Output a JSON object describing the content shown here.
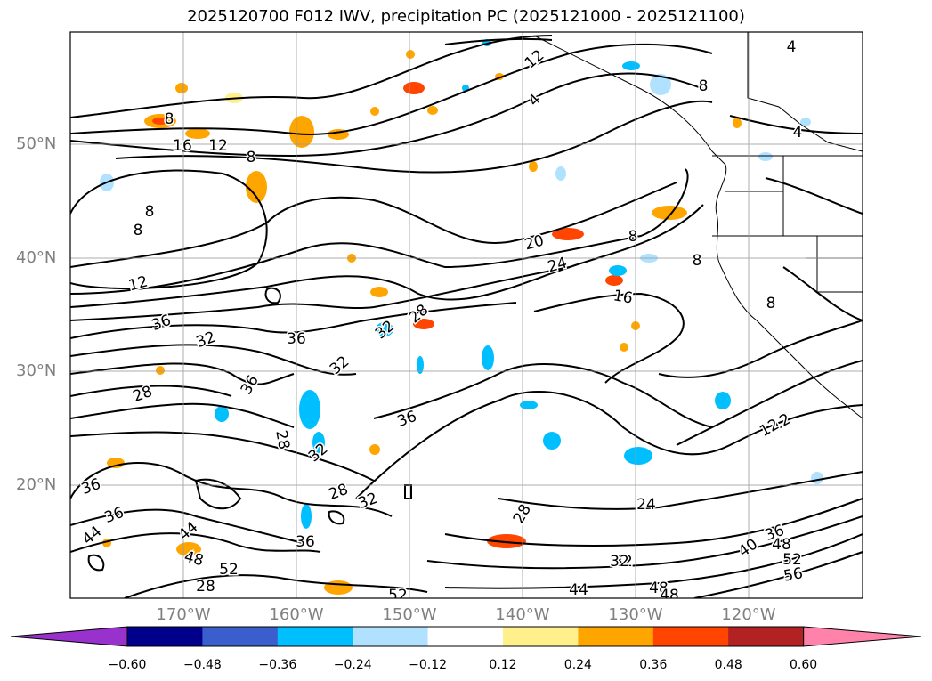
{
  "title": "2025120700 F012 IWV, precipitation PC (2025121000 - 2025121100)",
  "lat_labels": [
    "50°N",
    "40°N",
    "30°N",
    "20°N"
  ],
  "lon_labels": [
    "170°W",
    "160°W",
    "150°W",
    "140°W",
    "130°W",
    "120°W"
  ],
  "colorbar": {
    "ticks": [
      "−0.60",
      "−0.48",
      "−0.36",
      "−0.24",
      "−0.12",
      "0.12",
      "0.24",
      "0.36",
      "0.48",
      "0.60"
    ],
    "colors": [
      "#9932cc",
      "#00008b",
      "#3a5fcd",
      "#00bfff",
      "#b0e2ff",
      "#ffffff",
      "#fff08c",
      "#ffa500",
      "#ff4500",
      "#b22222",
      "#ff82ab"
    ]
  },
  "contour_labels": [
    "4",
    "12",
    "8",
    "16",
    "12",
    "8",
    "4",
    "8",
    "8",
    "12",
    "36",
    "32",
    "28",
    "36",
    "36",
    "20",
    "24",
    "16",
    "28",
    "32",
    "32",
    "28",
    "32",
    "36",
    "12",
    "8",
    "8",
    "8",
    "4",
    "8",
    "36",
    "36",
    "44",
    "44",
    "48",
    "52",
    "28",
    "28",
    "36",
    "32",
    "28",
    "24",
    "32",
    "44",
    "48",
    "52",
    "48",
    "40",
    "36",
    "48",
    "52",
    "56",
    "12",
    "32"
  ]
}
